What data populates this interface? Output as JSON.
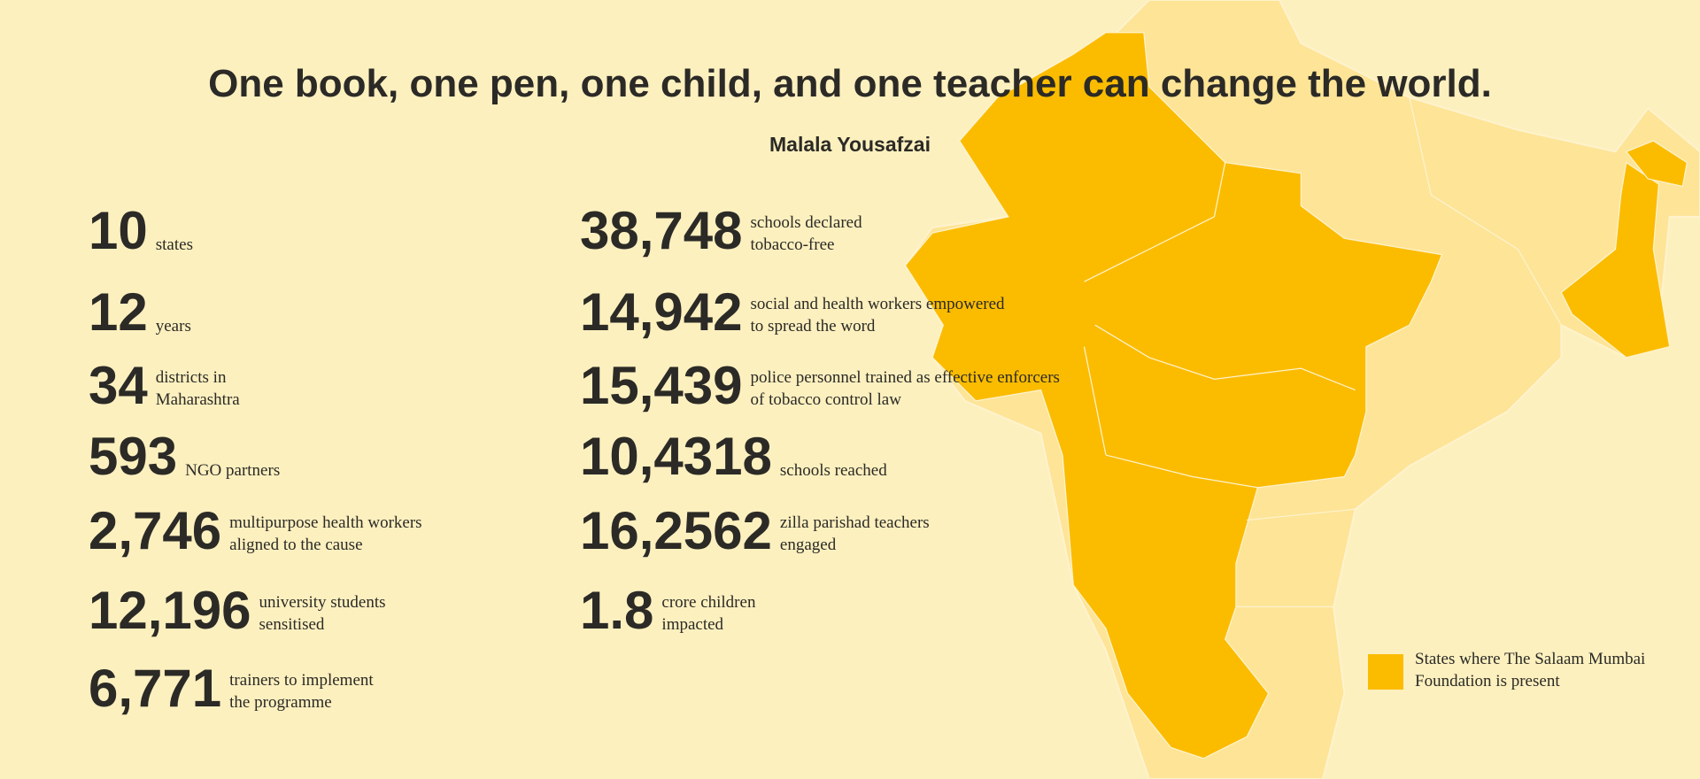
{
  "quote": {
    "text": "One book, one pen, one child, and one teacher can change the world.",
    "author": "Malala Yousafzai"
  },
  "stats_left": [
    {
      "number": "10",
      "description": [
        "states"
      ]
    },
    {
      "number": "12",
      "description": [
        "years"
      ]
    },
    {
      "number": "34",
      "description": [
        "districts in",
        "Maharashtra"
      ]
    },
    {
      "number": "593",
      "description": [
        "NGO partners"
      ]
    },
    {
      "number": "2,746",
      "description": [
        "multipurpose health workers",
        "aligned to the cause"
      ]
    },
    {
      "number": "12,196",
      "description": [
        "university students",
        "sensitised"
      ]
    },
    {
      "number": "6,771",
      "description": [
        "trainers to implement",
        "the programme"
      ]
    }
  ],
  "stats_right": [
    {
      "number": "38,748",
      "description": [
        "schools declared",
        "tobacco-free"
      ]
    },
    {
      "number": "14,942",
      "description": [
        "social and health workers empowered",
        "to spread the word"
      ]
    },
    {
      "number": "15,439",
      "description": [
        "police personnel trained as effective enforcers",
        "of tobacco control law"
      ]
    },
    {
      "number": "10,4318",
      "description": [
        "schools reached"
      ]
    },
    {
      "number": "16,2562",
      "description": [
        "zilla parishad teachers",
        "engaged"
      ]
    },
    {
      "number": "1.8",
      "description": [
        "crore children",
        "impacted"
      ]
    }
  ],
  "legend": {
    "text": "States where The Salaam Mumbai Foundation is present"
  }
}
